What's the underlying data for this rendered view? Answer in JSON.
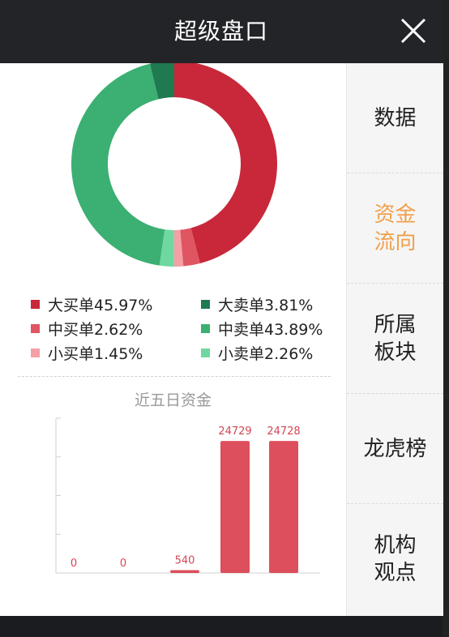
{
  "header": {
    "title": "超级盘口",
    "close_icon": "close-icon"
  },
  "sidebar": {
    "items": [
      {
        "label": "数据",
        "active": false
      },
      {
        "label": "资金\n流向",
        "active": true
      },
      {
        "label": "所属\n板块",
        "active": false
      },
      {
        "label": "龙虎榜",
        "active": false
      },
      {
        "label": "机构\n观点",
        "active": false
      }
    ]
  },
  "chart_data": [
    {
      "type": "pie",
      "style": "donut",
      "slices": [
        {
          "label": "大买单45.97%",
          "value": 45.97,
          "color": "#c8283a"
        },
        {
          "label": "中买单2.62%",
          "value": 2.62,
          "color": "#e05562"
        },
        {
          "label": "小买单1.45%",
          "value": 1.45,
          "color": "#f4a0a4"
        },
        {
          "label": "小卖单2.26%",
          "value": 2.26,
          "color": "#6ed8a0"
        },
        {
          "label": "中卖单43.89%",
          "value": 43.89,
          "color": "#3bb072"
        },
        {
          "label": "大卖单3.81%",
          "value": 3.81,
          "color": "#1f7a51"
        }
      ],
      "legend_order": [
        {
          "label": "大买单45.97%",
          "color": "#c8283a"
        },
        {
          "label": "大卖单3.81%",
          "color": "#1f7a51"
        },
        {
          "label": "中买单2.62%",
          "color": "#e05562"
        },
        {
          "label": "中卖单43.89%",
          "color": "#3bb072"
        },
        {
          "label": "小买单1.45%",
          "color": "#f4a0a4"
        },
        {
          "label": "小卖单2.26%",
          "color": "#6ed8a0"
        }
      ]
    },
    {
      "type": "bar",
      "title": "近五日资金",
      "values": [
        0,
        0,
        540,
        24729,
        24728
      ],
      "data_labels": [
        "0",
        "0",
        "540",
        "24729",
        "24728"
      ],
      "ylim": [
        0,
        29000
      ],
      "color": "#dd4f5c"
    }
  ]
}
